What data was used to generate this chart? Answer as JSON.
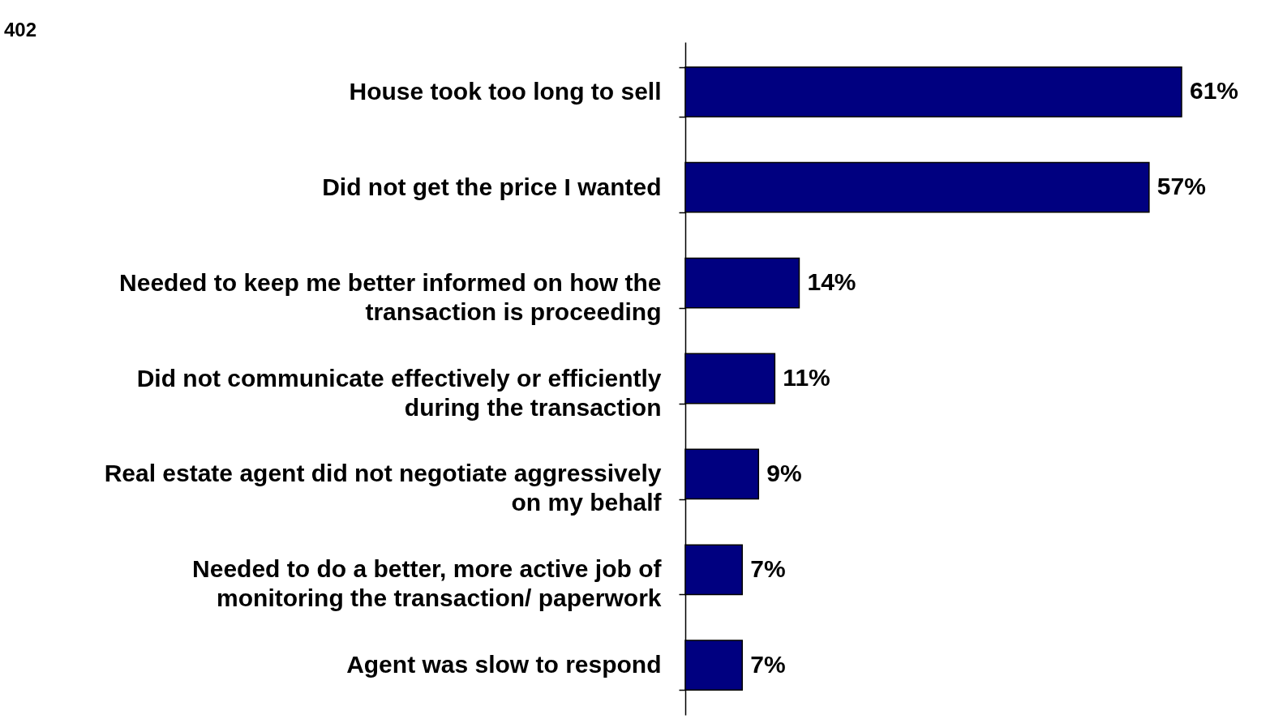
{
  "chart_data": {
    "type": "bar",
    "orientation": "horizontal",
    "categories": [
      "House took too long to sell",
      "Did not get the price I wanted",
      "Needed to keep me better informed on how the\ntransaction is proceeding",
      "Did not communicate effectively or efficiently\nduring the transaction",
      "Real estate agent did not negotiate aggressively\non my behalf",
      "Needed to do a better, more active job of\nmonitoring the transaction/ paperwork",
      "Agent was slow to respond"
    ],
    "values": [
      61,
      57,
      14,
      11,
      9,
      7,
      7
    ],
    "value_labels": [
      "61%",
      "57%",
      "14%",
      "11%",
      "9%",
      "7%",
      "7%"
    ],
    "color": "#000080",
    "annotations": [
      "402"
    ]
  }
}
